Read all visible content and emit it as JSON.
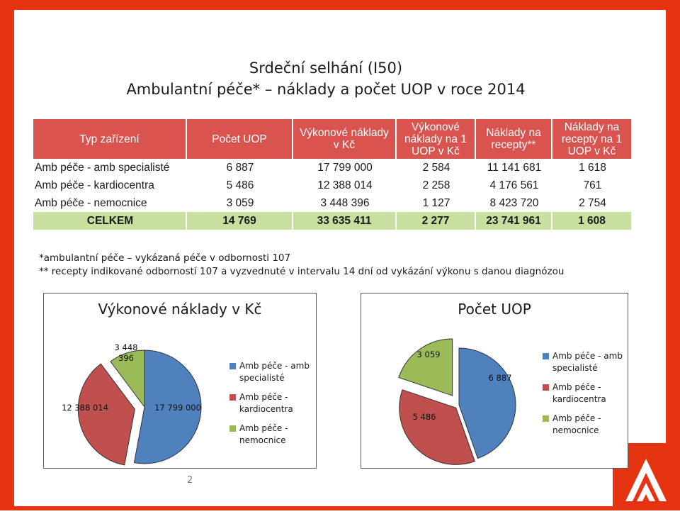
{
  "title_line1": "Srdeční selhání (I50)",
  "title_line2": "Ambulantní péče*  – náklady a počet UOP v roce 2014",
  "table": {
    "headers": [
      "Typ zařízení",
      "Počet UOP",
      "Výkonové náklady v Kč",
      "Výkonové náklady na 1 UOP v Kč",
      "Náklady na recepty**",
      "Náklady na recepty na 1 UOP v Kč"
    ],
    "rows": [
      [
        "Amb péče - amb specialisté",
        "6 887",
        "17 799 000",
        "2 584",
        "11 141 681",
        "1 618"
      ],
      [
        "Amb péče - kardiocentra",
        "5 486",
        "12 388 014",
        "2 258",
        "4 176 561",
        "761"
      ],
      [
        "Amb péče - nemocnice",
        "3 059",
        "3 448 396",
        "1 127",
        "8 423 720",
        "2 754"
      ]
    ],
    "total": [
      "CELKEM",
      "14 769",
      "33 635 411",
      "2 277",
      "23 741 961",
      "1 608"
    ]
  },
  "notes": {
    "n1": "*ambulantní péče – vykázaná péče v odbornosti 107",
    "n2": "** recepty indikované odborností 107 a vyzvednuté v intervalu 14 dní od vykázání výkonu s danou diagnózou"
  },
  "page_number": "2",
  "colors": {
    "frame": "#e63312",
    "header": "#d9534f",
    "total_row": "#c9dfa0",
    "series_blue": "#4f81bd",
    "series_red": "#c0504d",
    "series_green": "#9bbb59"
  },
  "chart_data": [
    {
      "type": "pie",
      "title": "Výkonové náklady v Kč",
      "categories": [
        "Amb péče - amb specialisté",
        "Amb péče - kardiocentra",
        "Amb péče - nemocnice"
      ],
      "values": [
        17799000,
        12388014,
        3448396
      ],
      "labels": [
        "17 799 000",
        "12 388 014",
        "3 448 396"
      ],
      "legend": "right"
    },
    {
      "type": "pie",
      "title": "Počet UOP",
      "categories": [
        "Amb péče - amb specialisté",
        "Amb péče - kardiocentra",
        "Amb péče - nemocnice"
      ],
      "values": [
        6887,
        5486,
        3059
      ],
      "labels": [
        "6 887",
        "5 486",
        "3 059"
      ],
      "legend": "right"
    }
  ]
}
